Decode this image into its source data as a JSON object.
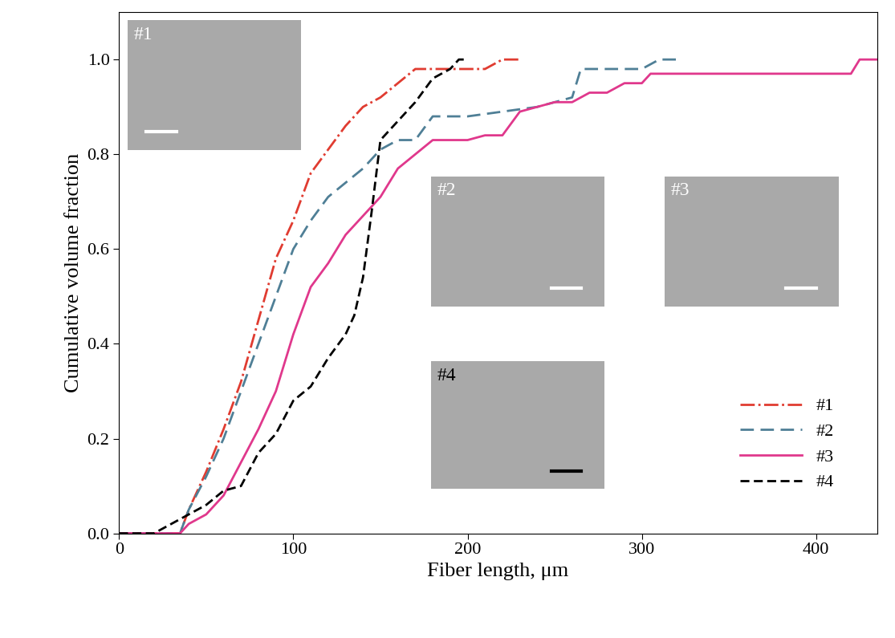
{
  "chart_data": {
    "type": "line",
    "x_label": "Fiber length, μm",
    "y_label": "Cumulative volume fraction",
    "xlim": [
      0,
      435
    ],
    "ylim": [
      0,
      1.1
    ],
    "xticks": [
      0,
      100,
      200,
      300,
      400
    ],
    "yticks": [
      0.0,
      0.2,
      0.4,
      0.6,
      0.8,
      1.0
    ],
    "grid": false,
    "legend": "lower right",
    "series": [
      {
        "name": "#1",
        "color": "#e03c31",
        "line_style": "dashdot",
        "x": [
          0,
          35,
          40,
          50,
          60,
          70,
          80,
          90,
          100,
          110,
          120,
          130,
          140,
          150,
          160,
          170,
          180,
          200,
          210,
          220,
          230
        ],
        "values": [
          0,
          0,
          0.05,
          0.13,
          0.22,
          0.32,
          0.45,
          0.58,
          0.66,
          0.76,
          0.81,
          0.86,
          0.9,
          0.92,
          0.95,
          0.98,
          0.98,
          0.98,
          0.98,
          1.0,
          1.0
        ]
      },
      {
        "name": "#2",
        "color": "#4f7f96",
        "line_style": "dashed",
        "x": [
          0,
          35,
          40,
          50,
          60,
          70,
          80,
          90,
          100,
          110,
          120,
          130,
          140,
          150,
          160,
          170,
          180,
          200,
          220,
          240,
          260,
          265,
          300,
          310,
          320
        ],
        "values": [
          0,
          0,
          0.05,
          0.12,
          0.2,
          0.3,
          0.4,
          0.5,
          0.6,
          0.66,
          0.71,
          0.74,
          0.77,
          0.81,
          0.83,
          0.83,
          0.88,
          0.88,
          0.89,
          0.9,
          0.92,
          0.98,
          0.98,
          1.0,
          1.0
        ]
      },
      {
        "name": "#3",
        "color": "#e0388c",
        "line_style": "solid",
        "x": [
          0,
          35,
          40,
          50,
          60,
          70,
          80,
          90,
          100,
          110,
          120,
          130,
          140,
          150,
          160,
          170,
          180,
          200,
          210,
          220,
          230,
          240,
          250,
          260,
          270,
          280,
          290,
          300,
          305,
          420,
          425,
          435
        ],
        "values": [
          0,
          0,
          0.02,
          0.04,
          0.08,
          0.15,
          0.22,
          0.3,
          0.42,
          0.52,
          0.57,
          0.63,
          0.67,
          0.71,
          0.77,
          0.8,
          0.83,
          0.83,
          0.84,
          0.84,
          0.89,
          0.9,
          0.91,
          0.91,
          0.93,
          0.93,
          0.95,
          0.95,
          0.97,
          0.97,
          1.0,
          1.0
        ]
      },
      {
        "name": "#4",
        "color": "#000000",
        "line_style": "dashed",
        "x": [
          0,
          20,
          30,
          40,
          50,
          60,
          70,
          80,
          90,
          100,
          110,
          120,
          130,
          135,
          140,
          145,
          150,
          160,
          170,
          180,
          190,
          195,
          200
        ],
        "values": [
          0,
          0,
          0.02,
          0.04,
          0.06,
          0.09,
          0.1,
          0.17,
          0.21,
          0.28,
          0.31,
          0.37,
          0.42,
          0.46,
          0.54,
          0.68,
          0.83,
          0.87,
          0.91,
          0.96,
          0.98,
          1.0,
          1.0
        ]
      }
    ]
  }
}
